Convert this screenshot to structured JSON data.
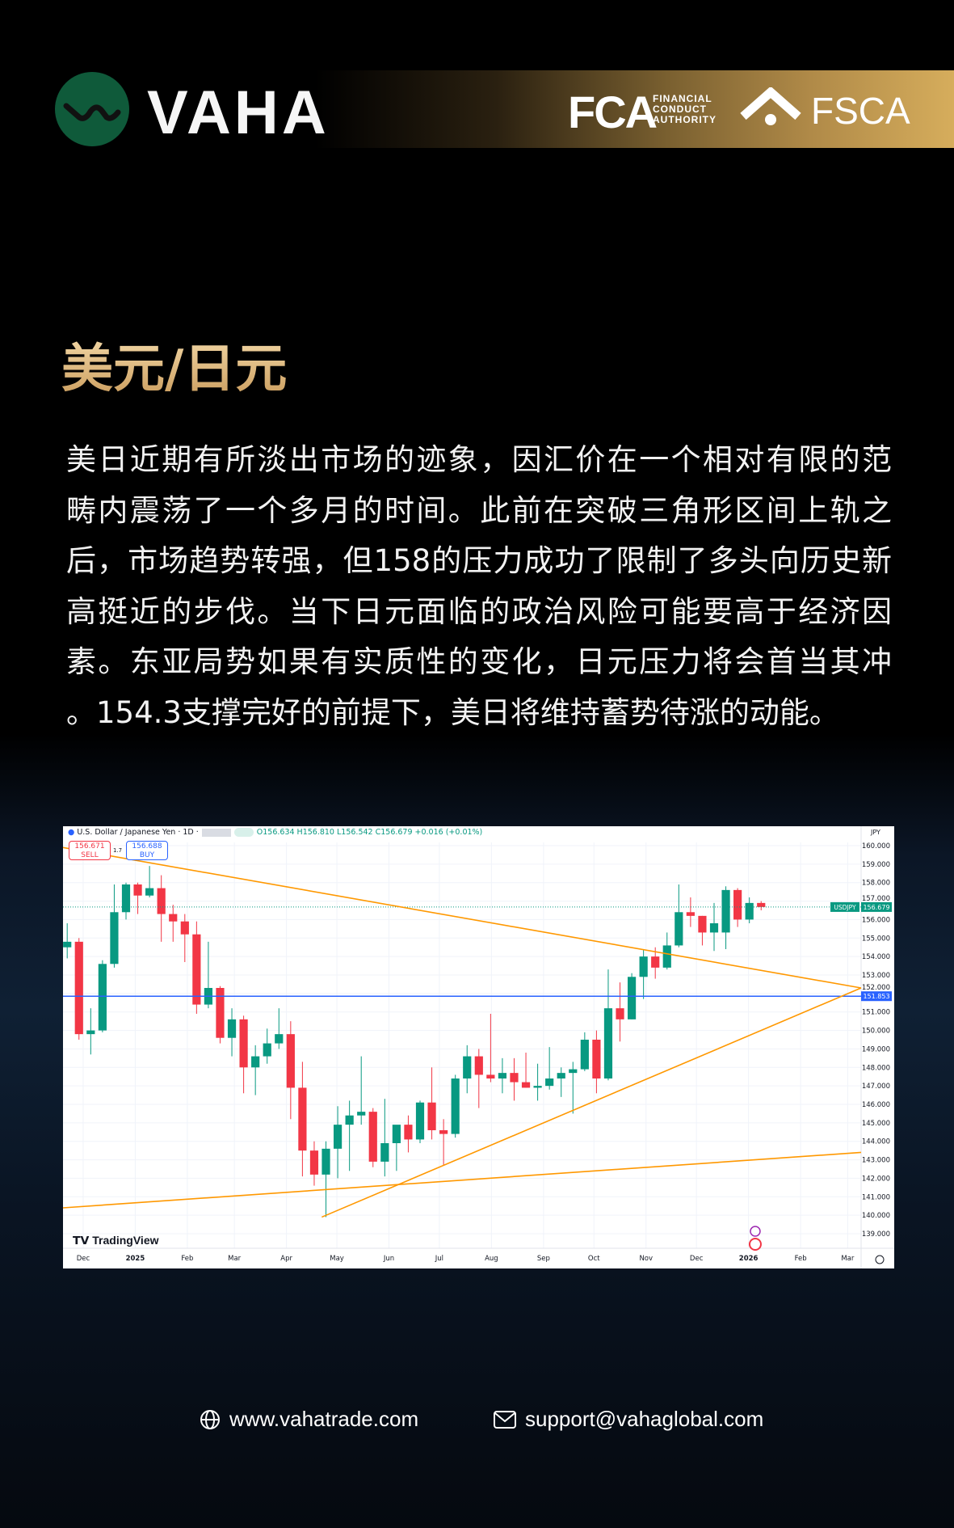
{
  "brand": {
    "name": "VAHA",
    "regulators": [
      {
        "abbr": "FCA",
        "full": [
          "FINANCIAL",
          "CONDUCT",
          "AUTHORITY"
        ]
      },
      {
        "abbr": "FSCA"
      }
    ],
    "colors": {
      "gold": "#d6ad5c",
      "green": "#0f5a3a"
    }
  },
  "title": "美元/日元",
  "body_lines": [
    "美日近期有所淡出市场的迹象，因汇价在一个相对有限的范",
    "畴内震荡了一个多月的时间。此前在突破三角形区间上轨之",
    "后，市场趋势转强，但158的压力成功了限制了多头向历史新",
    "高挺近的步伐。当下日元面临的政治风险可能要高于经济因",
    "素。东亚局势如果有实质性的变化，日元压力将会首当其冲",
    "。154.3支撑完好的前提下，美日将维持蓄势待涨的动能。"
  ],
  "chart_header": {
    "symbol": "U.S. Dollar / Japanese Yen · 1D ·",
    "ohlc": "O156.634 H156.810 L156.542 C156.679 +0.016 (+0.01%)",
    "sell_price": "156.671",
    "sell_label": "SELL",
    "spread": "1.7",
    "buy_price": "156.688",
    "buy_label": "BUY",
    "watermark": "TradingView"
  },
  "chart_data": {
    "type": "candlestick",
    "interval": "1D",
    "currency_label": "JPY",
    "ylim": [
      138.5,
      160.5
    ],
    "yticks": [
      "160.000",
      "159.000",
      "158.000",
      "157.000",
      "156.000",
      "155.000",
      "154.000",
      "153.000",
      "152.000",
      "151.000",
      "150.000",
      "149.000",
      "148.000",
      "147.000",
      "146.000",
      "145.000",
      "144.000",
      "143.000",
      "142.000",
      "141.000",
      "140.000",
      "139.000"
    ],
    "xticks": [
      [
        "2024-12-01",
        "Dec"
      ],
      [
        "2025-01-01",
        "2025"
      ],
      [
        "2025-02-01",
        "Feb"
      ],
      [
        "2025-03-01",
        "Mar"
      ],
      [
        "2025-04-01",
        "Apr"
      ],
      [
        "2025-05-01",
        "May"
      ],
      [
        "2025-06-01",
        "Jun"
      ],
      [
        "2025-07-01",
        "Jul"
      ],
      [
        "2025-08-01",
        "Aug"
      ],
      [
        "2025-09-01",
        "Sep"
      ],
      [
        "2025-10-01",
        "Oct"
      ],
      [
        "2025-11-01",
        "Nov"
      ],
      [
        "2025-12-01",
        "Dec"
      ],
      [
        "2026-01-01",
        "2026"
      ],
      [
        "2026-02-01",
        "Feb"
      ],
      [
        "2026-03-01",
        "Mar"
      ]
    ],
    "xlim": [
      "2024-11-19",
      "2026-03-09"
    ],
    "grid": true,
    "colors": {
      "up": "#089981",
      "down": "#f23645",
      "trendline": "#ff9800",
      "hline": "#2962ff"
    },
    "last_price": {
      "label": "USDJPY",
      "value": "156.679"
    },
    "hline": {
      "value": "151.853"
    },
    "trendlines": [
      {
        "from": [
          "2024-11-19",
          159.9
        ],
        "to": [
          "2026-03-09",
          152.3
        ]
      },
      {
        "from": [
          "2025-04-22",
          139.9
        ],
        "to": [
          "2026-03-09",
          152.3
        ]
      },
      {
        "from": [
          "2024-11-19",
          140.4
        ],
        "to": [
          "2026-03-09",
          143.4
        ]
      }
    ],
    "candles_weekly_approx": [
      [
        "2024-11-18",
        154.5,
        155.8,
        153.9,
        154.8
      ],
      [
        "2024-11-25",
        154.8,
        155.0,
        149.5,
        149.8
      ],
      [
        "2024-12-02",
        149.8,
        151.2,
        148.7,
        150.0
      ],
      [
        "2024-12-09",
        150.0,
        153.8,
        149.9,
        153.6
      ],
      [
        "2024-12-16",
        153.6,
        157.9,
        153.4,
        156.4
      ],
      [
        "2024-12-23",
        156.4,
        158.0,
        156.0,
        157.9
      ],
      [
        "2024-12-30",
        157.9,
        158.0,
        156.3,
        157.3
      ],
      [
        "2025-01-06",
        157.3,
        158.9,
        157.2,
        157.7
      ],
      [
        "2025-01-13",
        157.7,
        158.4,
        154.8,
        156.3
      ],
      [
        "2025-01-20",
        156.3,
        156.8,
        154.8,
        155.9
      ],
      [
        "2025-01-27",
        155.9,
        156.3,
        153.7,
        155.2
      ],
      [
        "2025-02-03",
        155.2,
        155.9,
        150.9,
        151.4
      ],
      [
        "2025-02-10",
        151.4,
        154.8,
        151.2,
        152.3
      ],
      [
        "2025-02-17",
        152.3,
        152.4,
        149.3,
        149.6
      ],
      [
        "2025-02-24",
        149.6,
        151.2,
        148.6,
        150.6
      ],
      [
        "2025-03-03",
        150.6,
        150.8,
        146.6,
        148.0
      ],
      [
        "2025-03-10",
        148.0,
        149.2,
        146.5,
        148.6
      ],
      [
        "2025-03-17",
        148.6,
        150.1,
        148.2,
        149.3
      ],
      [
        "2025-03-24",
        149.3,
        151.2,
        149.0,
        149.8
      ],
      [
        "2025-03-31",
        149.8,
        150.5,
        145.2,
        146.9
      ],
      [
        "2025-04-07",
        146.9,
        148.3,
        142.1,
        143.5
      ],
      [
        "2025-04-14",
        143.5,
        144.0,
        141.6,
        142.2
      ],
      [
        "2025-04-21",
        142.2,
        144.0,
        139.9,
        143.6
      ],
      [
        "2025-04-28",
        143.6,
        145.9,
        142.0,
        144.9
      ],
      [
        "2025-05-05",
        144.9,
        146.2,
        142.4,
        145.4
      ],
      [
        "2025-05-12",
        145.4,
        148.6,
        144.9,
        145.6
      ],
      [
        "2025-05-19",
        145.6,
        145.8,
        142.6,
        142.9
      ],
      [
        "2025-05-26",
        142.9,
        146.3,
        142.1,
        143.9
      ],
      [
        "2025-06-02",
        143.9,
        144.6,
        142.4,
        144.9
      ],
      [
        "2025-06-09",
        144.9,
        145.4,
        143.4,
        144.1
      ],
      [
        "2025-06-16",
        144.1,
        146.2,
        143.9,
        146.1
      ],
      [
        "2025-06-23",
        146.1,
        148.0,
        144.1,
        144.6
      ],
      [
        "2025-06-30",
        144.6,
        145.2,
        142.7,
        144.4
      ],
      [
        "2025-07-07",
        144.4,
        147.6,
        144.2,
        147.4
      ],
      [
        "2025-07-14",
        147.4,
        149.2,
        146.6,
        148.6
      ],
      [
        "2025-07-21",
        148.6,
        149.0,
        145.8,
        147.6
      ],
      [
        "2025-07-28",
        147.6,
        150.9,
        147.2,
        147.4
      ],
      [
        "2025-08-04",
        147.4,
        148.5,
        146.6,
        147.7
      ],
      [
        "2025-08-11",
        147.7,
        148.5,
        146.2,
        147.2
      ],
      [
        "2025-08-18",
        147.2,
        148.8,
        146.9,
        146.9
      ],
      [
        "2025-08-25",
        146.9,
        148.2,
        146.2,
        147.0
      ],
      [
        "2025-09-01",
        147.0,
        149.1,
        146.8,
        147.4
      ],
      [
        "2025-09-08",
        147.4,
        148.0,
        146.4,
        147.7
      ],
      [
        "2025-09-15",
        147.7,
        148.3,
        145.5,
        147.9
      ],
      [
        "2025-09-22",
        147.9,
        149.9,
        147.8,
        149.5
      ],
      [
        "2025-09-29",
        149.5,
        150.0,
        146.6,
        147.4
      ],
      [
        "2025-10-06",
        147.4,
        153.3,
        147.3,
        151.2
      ],
      [
        "2025-10-13",
        151.2,
        152.6,
        149.4,
        150.6
      ],
      [
        "2025-10-20",
        150.6,
        153.1,
        150.6,
        152.9
      ],
      [
        "2025-10-27",
        152.9,
        154.4,
        151.7,
        154.0
      ],
      [
        "2025-11-03",
        154.0,
        154.5,
        152.8,
        153.4
      ],
      [
        "2025-11-10",
        153.4,
        155.3,
        153.3,
        154.6
      ],
      [
        "2025-11-17",
        154.6,
        157.9,
        154.5,
        156.4
      ],
      [
        "2025-11-24",
        156.4,
        157.2,
        155.6,
        156.2
      ],
      [
        "2025-12-01",
        156.2,
        156.2,
        154.6,
        155.3
      ],
      [
        "2025-12-08",
        155.3,
        156.9,
        154.3,
        155.8
      ],
      [
        "2025-12-15",
        155.3,
        157.8,
        154.4,
        157.6
      ],
      [
        "2025-12-22",
        157.6,
        157.7,
        155.6,
        156.0
      ],
      [
        "2025-12-29",
        156.0,
        157.2,
        155.8,
        156.9
      ],
      [
        "2026-01-05",
        156.9,
        157.0,
        156.5,
        156.68
      ]
    ]
  },
  "footer": {
    "website": "www.vahatrade.com",
    "email": "support@vahaglobal.com"
  }
}
